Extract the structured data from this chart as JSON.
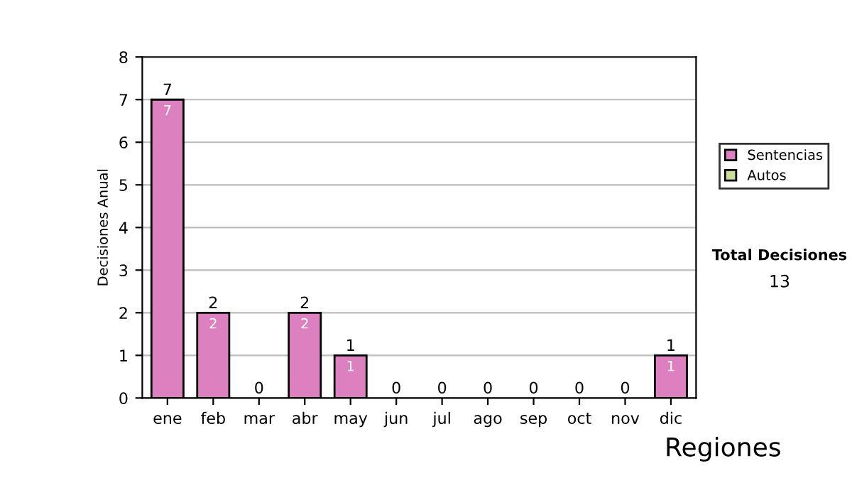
{
  "chart_data": {
    "type": "bar",
    "stacked": true,
    "ylabel": "Decisiones Anual",
    "categories": [
      "ene",
      "feb",
      "mar",
      "abr",
      "may",
      "jun",
      "jul",
      "ago",
      "sep",
      "oct",
      "nov",
      "dic"
    ],
    "series": [
      {
        "name": "Sentencias",
        "color": "#dd80c0",
        "values": [
          7,
          2,
          0,
          2,
          1,
          0,
          0,
          0,
          0,
          0,
          0,
          1
        ],
        "value_labels": [
          "7",
          "2",
          null,
          "2",
          "1",
          null,
          null,
          null,
          null,
          null,
          null,
          "1"
        ]
      },
      {
        "name": "Autos",
        "color": "#ccdd99",
        "values": [
          0,
          0,
          0,
          0,
          0,
          0,
          0,
          0,
          0,
          0,
          0,
          0
        ]
      }
    ],
    "totals": [
      "7",
      "2",
      "0",
      "2",
      "1",
      "0",
      "0",
      "0",
      "0",
      "0",
      "0",
      "1"
    ],
    "ylim": [
      0,
      8
    ],
    "yticks": [
      0,
      1,
      2,
      3,
      4,
      5,
      6,
      7,
      8
    ],
    "grid": "y",
    "legend": "right",
    "annotations": [
      "Total Decisiones",
      "13",
      "Regiones"
    ]
  }
}
